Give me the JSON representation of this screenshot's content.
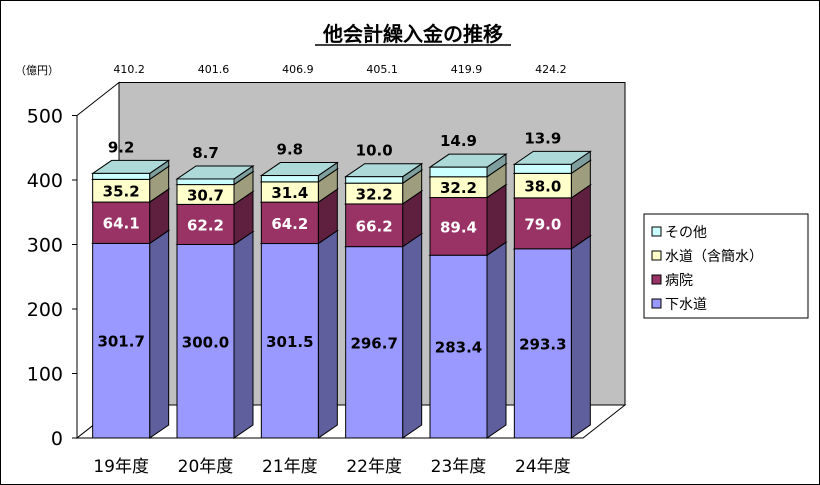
{
  "chart_data": {
    "type": "bar",
    "stacked": true,
    "three_d": true,
    "title": "他会計繰入金の推移",
    "unit_label": "（億円）",
    "categories": [
      "19年度",
      "20年度",
      "21年度",
      "22年度",
      "23年度",
      "24年度"
    ],
    "totals": [
      "410.2",
      "401.6",
      "406.9",
      "405.1",
      "419.9",
      "424.2"
    ],
    "series": [
      {
        "name": "下水道",
        "color": "#9999FF",
        "values": [
          301.7,
          300.0,
          301.5,
          296.7,
          283.4,
          293.3
        ],
        "labels": [
          "301.7",
          "300.0",
          "301.5",
          "296.7",
          "283.4",
          "293.3"
        ]
      },
      {
        "name": "病院",
        "color": "#993366",
        "values": [
          64.1,
          62.2,
          64.2,
          66.2,
          89.4,
          79.0
        ],
        "labels": [
          "64.1",
          "62.2",
          "64.2",
          "66.2",
          "89.4",
          "79.0"
        ]
      },
      {
        "name": "水道（含簡水）",
        "color": "#FFFFCC",
        "values": [
          35.2,
          30.7,
          31.4,
          32.2,
          32.2,
          38.0
        ],
        "labels": [
          "35.2",
          "30.7",
          "31.4",
          "32.2",
          "32.2",
          "38.0"
        ]
      },
      {
        "name": "その他",
        "color": "#CCFFFF",
        "values": [
          9.2,
          8.7,
          9.8,
          10.0,
          14.9,
          13.9
        ],
        "labels": [
          "9.2",
          "8.7",
          "9.8",
          "10.0",
          "14.9",
          "13.9"
        ]
      }
    ],
    "legend_order": [
      "その他",
      "水道（含簡水）",
      "病院",
      "下水道"
    ],
    "legend_position": "right",
    "y_ticks": [
      "0",
      "100",
      "200",
      "300",
      "400",
      "500"
    ],
    "ylim": [
      0,
      500
    ],
    "grid": false,
    "back_wall_color": "#C0C0C0"
  }
}
